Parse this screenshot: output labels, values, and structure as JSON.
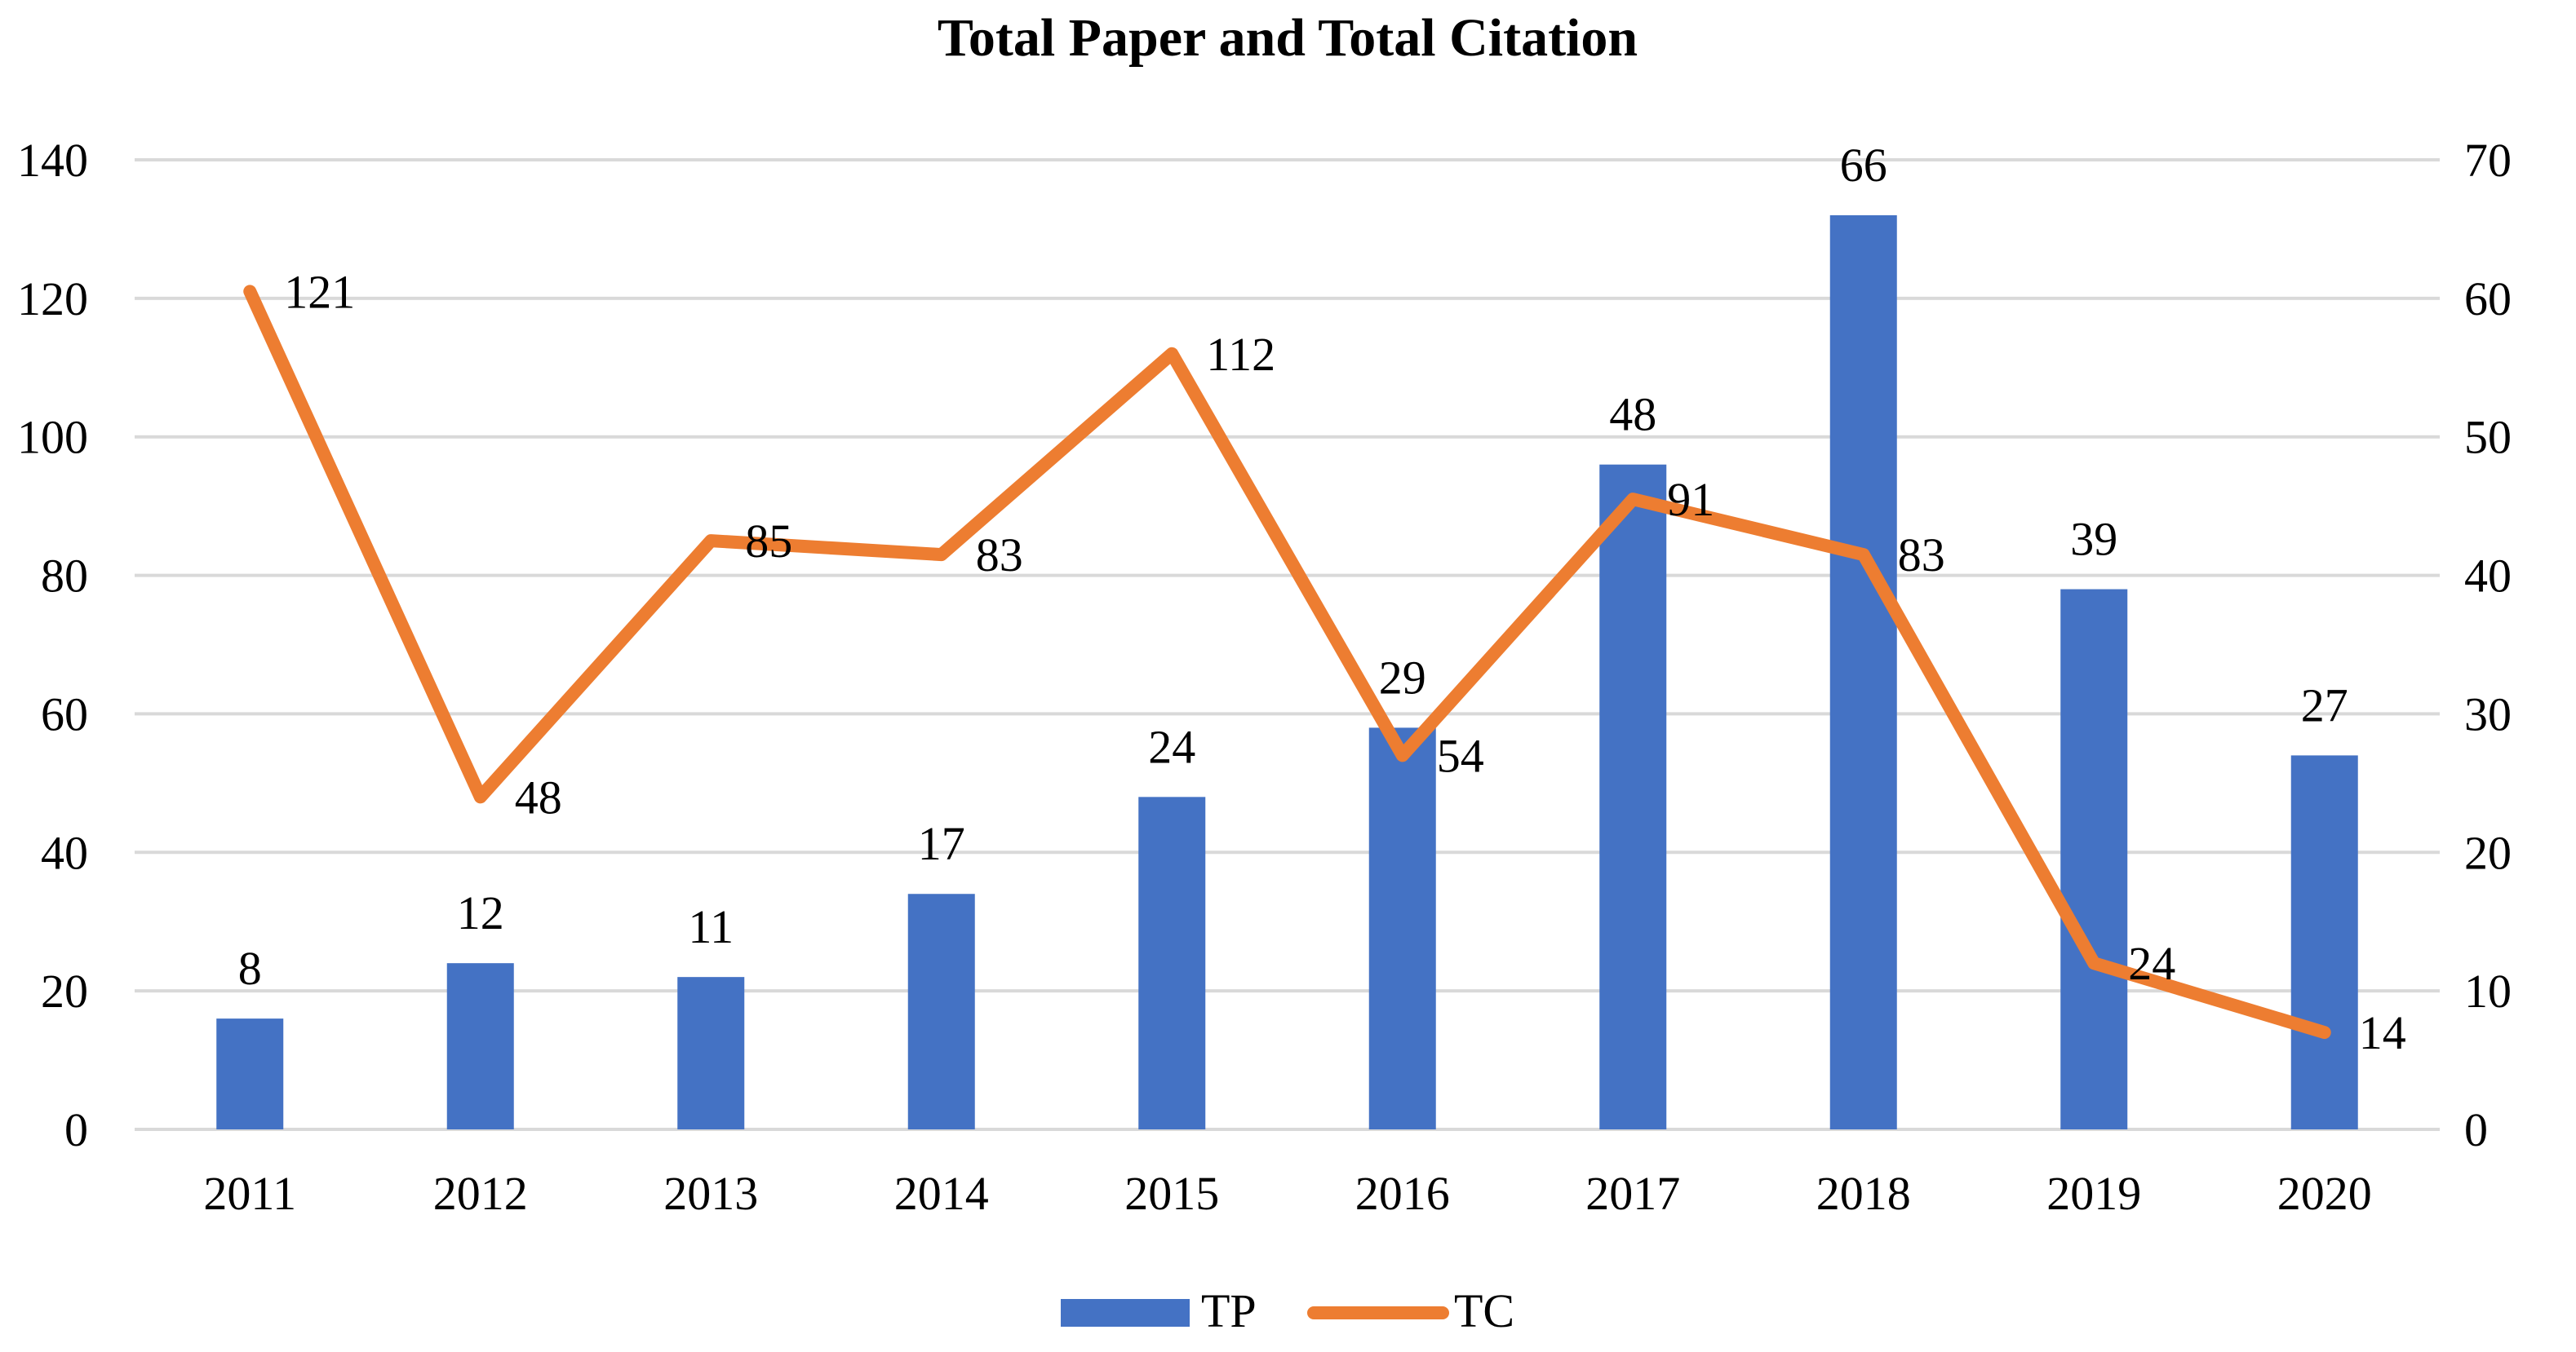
{
  "chart_data": {
    "type": "bar",
    "title": "Total Paper and Total Citation",
    "categories": [
      "2011",
      "2012",
      "2013",
      "2014",
      "2015",
      "2016",
      "2017",
      "2018",
      "2019",
      "2020"
    ],
    "series": [
      {
        "name": "TP",
        "type": "bar",
        "axis": "right",
        "color": "#4472C4",
        "values": [
          8,
          12,
          11,
          17,
          24,
          29,
          48,
          66,
          39,
          27
        ]
      },
      {
        "name": "TC",
        "type": "line",
        "axis": "left",
        "color": "#ED7D31",
        "values": [
          121,
          48,
          85,
          83,
          112,
          54,
          91,
          83,
          24,
          14
        ]
      }
    ],
    "left_axis": {
      "ylim": [
        0,
        140
      ],
      "ticks": [
        "0",
        "20",
        "40",
        "60",
        "80",
        "100",
        "120",
        "140"
      ]
    },
    "right_axis": {
      "ylim": [
        0,
        70
      ],
      "ticks": [
        "0",
        "10",
        "20",
        "30",
        "40",
        "50",
        "60",
        "70"
      ]
    },
    "xlabel": "",
    "ylabel": "",
    "grid": true,
    "legend": "bottom-center",
    "gridColor": "#D9D9D9"
  }
}
